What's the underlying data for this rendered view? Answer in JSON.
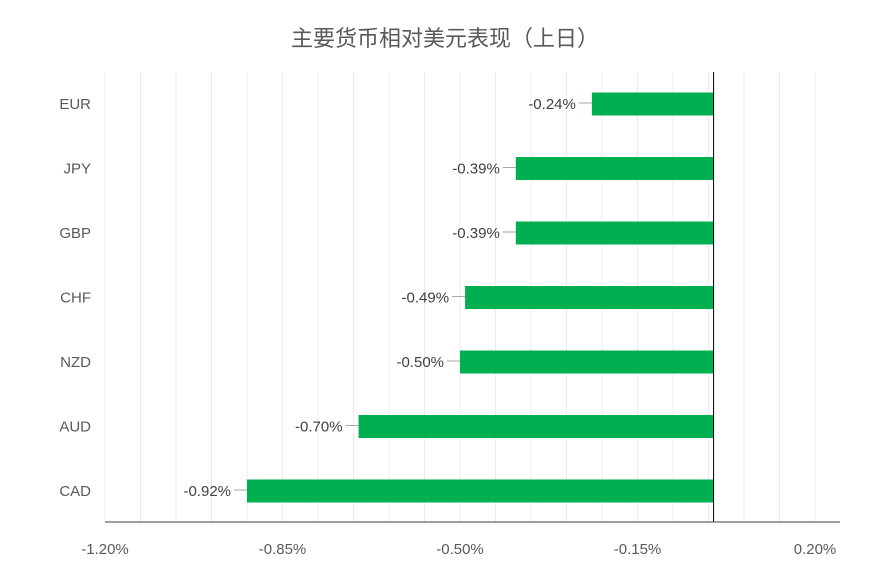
{
  "chart_data": {
    "type": "bar",
    "orientation": "horizontal",
    "title": "主要货币相对美元表现（上日）",
    "categories": [
      "EUR",
      "JPY",
      "GBP",
      "CHF",
      "NZD",
      "AUD",
      "CAD"
    ],
    "values": [
      -0.24,
      -0.39,
      -0.39,
      -0.49,
      -0.5,
      -0.7,
      -0.92
    ],
    "value_labels": [
      "-0.24%",
      "-0.39%",
      "-0.39%",
      "-0.49%",
      "-0.50%",
      "-0.70%",
      "-0.92%"
    ],
    "xlim": [
      -1.2,
      0.2
    ],
    "x_ticks": [
      -1.2,
      -0.85,
      -0.5,
      -0.15,
      0.2
    ],
    "x_tick_labels": [
      "-1.20%",
      "-0.85%",
      "-0.50%",
      "-0.15%",
      "0.20%"
    ],
    "bar_color": "#00b050",
    "grid": true,
    "legend": "none"
  }
}
